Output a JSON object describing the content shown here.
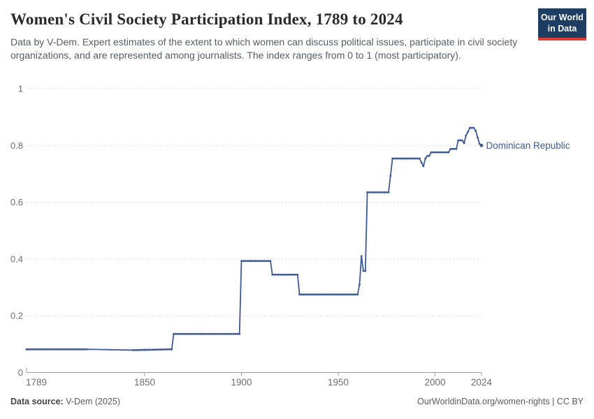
{
  "header": {
    "title": "Women's Civil Society Participation Index, 1789 to 2024",
    "subtitle": "Data by V-Dem. Expert estimates of the extent to which women can discuss political issues, participate in civil society organizations, and are represented among journalists. The index ranges from 0 to 1 (most participatory).",
    "logo": {
      "line1": "Our World",
      "line2": "in Data",
      "bg_color": "#1d3d63",
      "bar_color": "#dc3e32"
    }
  },
  "chart_data": {
    "type": "line",
    "title": "Women's Civil Society Participation Index, 1789 to 2024",
    "xlabel": "",
    "ylabel": "",
    "xlim": [
      1789,
      2024
    ],
    "ylim": [
      0,
      1
    ],
    "x_ticks": [
      1789,
      1850,
      1900,
      1950,
      2000,
      2024
    ],
    "y_ticks": [
      0,
      0.2,
      0.4,
      0.6,
      0.8,
      1
    ],
    "grid": "horizontal-dashed",
    "legend_position": "end-of-line-label",
    "colors": {
      "grid": "#dcdcdc",
      "axis": "#9a9a9a",
      "tick_text": "#6e6e6e"
    },
    "marker_gap_years": [
      1821,
      1843
    ],
    "series": [
      {
        "name": "Dominican Republic",
        "color": "#3e5a96",
        "points": [
          [
            1789,
            0.082
          ],
          [
            1820,
            0.082
          ],
          [
            1844,
            0.079
          ],
          [
            1864,
            0.082
          ],
          [
            1865,
            0.136
          ],
          [
            1899,
            0.136
          ],
          [
            1900,
            0.393
          ],
          [
            1915,
            0.393
          ],
          [
            1916,
            0.345
          ],
          [
            1929,
            0.345
          ],
          [
            1930,
            0.275
          ],
          [
            1960,
            0.275
          ],
          [
            1961,
            0.31
          ],
          [
            1962,
            0.41
          ],
          [
            1963,
            0.358
          ],
          [
            1964,
            0.358
          ],
          [
            1965,
            0.635
          ],
          [
            1976,
            0.635
          ],
          [
            1977,
            0.693
          ],
          [
            1978,
            0.754
          ],
          [
            1992,
            0.754
          ],
          [
            1993,
            0.74
          ],
          [
            1994,
            0.727
          ],
          [
            1995,
            0.754
          ],
          [
            1996,
            0.763
          ],
          [
            1997,
            0.763
          ],
          [
            1998,
            0.776
          ],
          [
            2007,
            0.776
          ],
          [
            2008,
            0.788
          ],
          [
            2011,
            0.788
          ],
          [
            2012,
            0.818
          ],
          [
            2014,
            0.818
          ],
          [
            2015,
            0.808
          ],
          [
            2016,
            0.835
          ],
          [
            2017,
            0.848
          ],
          [
            2018,
            0.862
          ],
          [
            2020,
            0.862
          ],
          [
            2021,
            0.852
          ],
          [
            2022,
            0.828
          ],
          [
            2023,
            0.806
          ],
          [
            2024,
            0.8
          ]
        ]
      }
    ]
  },
  "footer": {
    "source_label": "Data source:",
    "source_value": " V-Dem (2025)",
    "link": "OurWorldinData.org/women-rights | CC BY"
  }
}
